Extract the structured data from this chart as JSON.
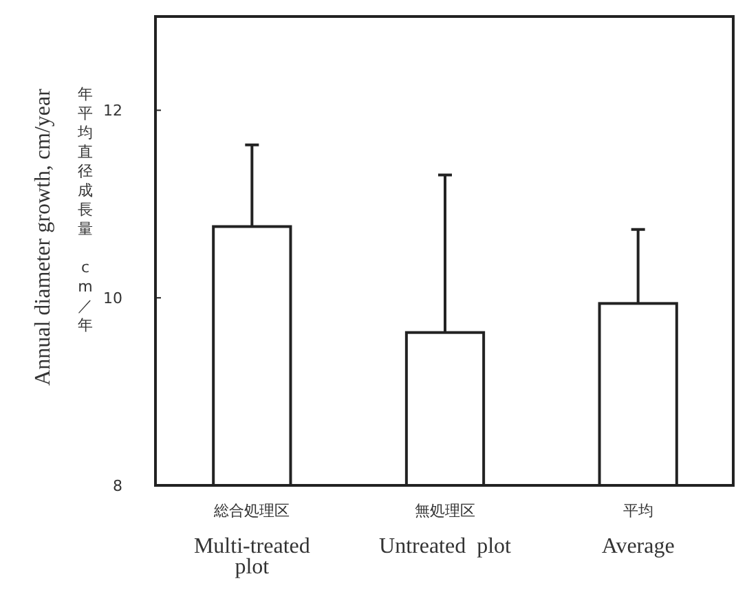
{
  "chart_data": {
    "type": "bar",
    "ylabel": "Annual diameter growth, cm/year",
    "annotations": [
      "年平均直径成長量 cm／年"
    ],
    "categories": [
      "総合処理区\nMulti-treated\nplot",
      "無処理区\nUntreated  plot",
      "平均\nAverage"
    ],
    "values": [
      10.76,
      9.63,
      9.94
    ],
    "errors": [
      [
        10.76,
        11.63
      ],
      [
        9.63,
        11.31
      ],
      [
        9.94,
        10.73
      ]
    ],
    "color": "#ffffff",
    "ylim": [
      8,
      13
    ],
    "yticks": [
      8,
      10,
      12
    ],
    "grid": false
  }
}
